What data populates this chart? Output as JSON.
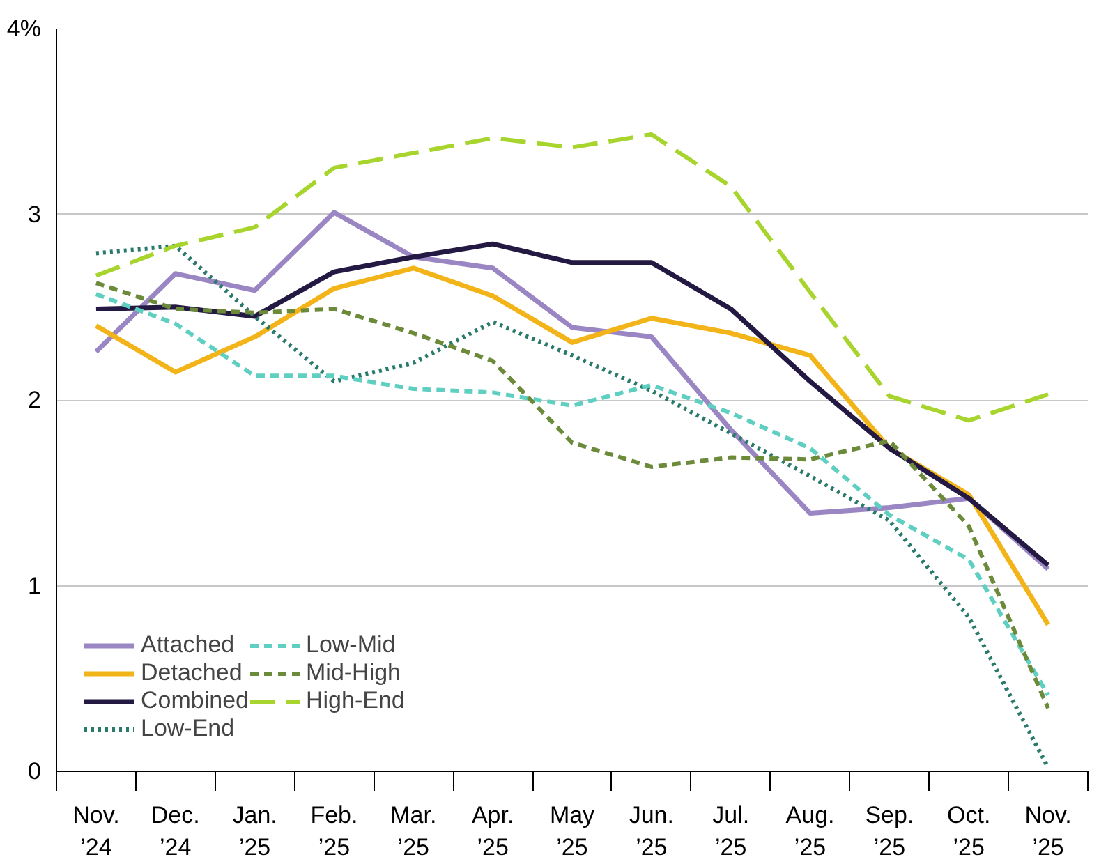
{
  "chart_data": {
    "type": "line",
    "categories": [
      "Nov.\n’24",
      "Dec.\n’24",
      "Jan.\n’25",
      "Feb.\n’25",
      "Mar.\n’25",
      "Apr.\n’25",
      "May\n’25",
      "Jun.\n’25",
      "Jul.\n’25",
      "Aug.\n’25",
      "Sep.\n’25",
      "Oct.\n’25",
      "Nov.\n’25"
    ],
    "ylim": [
      0,
      4
    ],
    "yticks": [
      0,
      1,
      2,
      3,
      {
        "value": 4,
        "label": "4%"
      }
    ],
    "grid": "y",
    "legend": "bottom left",
    "series": [
      {
        "name": "Attached",
        "color": "#9b86c4",
        "line_style": "solid",
        "values": [
          2.26,
          2.68,
          2.59,
          3.01,
          2.77,
          2.71,
          2.39,
          2.34,
          1.84,
          1.39,
          1.42,
          1.47,
          1.09
        ]
      },
      {
        "name": "Detached",
        "color": "#f2b418",
        "line_style": "solid",
        "values": [
          2.4,
          2.15,
          2.34,
          2.6,
          2.71,
          2.56,
          2.31,
          2.44,
          2.36,
          2.24,
          1.74,
          1.49,
          0.79
        ]
      },
      {
        "name": "Combined",
        "color": "#231942",
        "line_style": "solid",
        "values": [
          2.49,
          2.5,
          2.45,
          2.69,
          2.77,
          2.84,
          2.74,
          2.74,
          2.49,
          2.1,
          1.74,
          1.47,
          1.11
        ]
      },
      {
        "name": "Low-End",
        "color": "#2a7a6b",
        "line_style": "dotted",
        "values": [
          2.79,
          2.83,
          2.45,
          2.1,
          2.2,
          2.42,
          2.24,
          2.05,
          1.82,
          1.59,
          1.35,
          0.83,
          0.02
        ]
      },
      {
        "name": "Low-Mid",
        "color": "#5ecfc0",
        "line_style": "dashed",
        "values": [
          2.57,
          2.41,
          2.13,
          2.13,
          2.06,
          2.04,
          1.97,
          2.08,
          1.93,
          1.74,
          1.38,
          1.14,
          0.41
        ]
      },
      {
        "name": "Mid-High",
        "color": "#6b8a3a",
        "line_style": "dashed",
        "values": [
          2.63,
          2.49,
          2.47,
          2.49,
          2.36,
          2.21,
          1.77,
          1.64,
          1.69,
          1.68,
          1.78,
          1.32,
          0.34
        ]
      },
      {
        "name": "High-End",
        "color": "#a8d42e",
        "line_style": "longdash",
        "values": [
          2.67,
          2.83,
          2.93,
          3.25,
          3.33,
          3.41,
          3.36,
          3.43,
          3.15,
          2.58,
          2.02,
          1.89,
          2.03
        ]
      }
    ]
  }
}
